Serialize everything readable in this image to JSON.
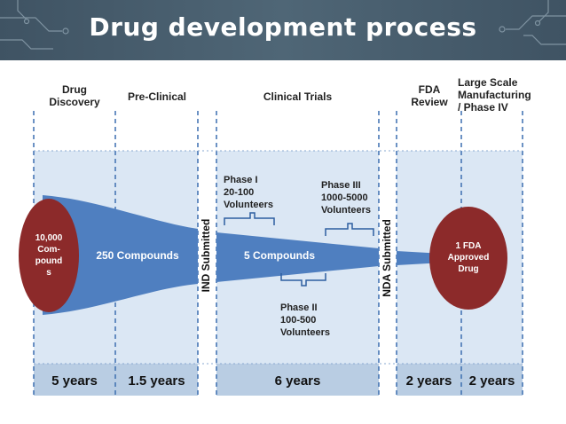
{
  "title": "Drug development process",
  "stages": [
    {
      "label": "Drug\nDiscovery"
    },
    {
      "label": "Pre-Clinical"
    },
    {
      "label": "Clinical Trials"
    },
    {
      "label": "FDA\nReview"
    },
    {
      "label": "Large Scale\nManufacturing\n/ Phase IV"
    }
  ],
  "milestones": {
    "ind": "IND Submitted",
    "nda": "NDA Submitted"
  },
  "funnel": {
    "start": "10,000\nCom-\npound\ns",
    "preclinical": "250 Compounds",
    "clinical": "5 Compounds",
    "end": "1 FDA\nApproved\nDrug"
  },
  "phases": {
    "phase1": "Phase I\n20-100\nVolunteers",
    "phase2": "Phase II\n100-500\nVolunteers",
    "phase3": "Phase III\n1000-5000\nVolunteers"
  },
  "durations": [
    "5 years",
    "1.5 years",
    "6 years",
    "2 years",
    "2 years"
  ],
  "colors": {
    "header": "#4a5e6e",
    "funnel": "#4f7fc0",
    "oval": "#8c2a2a",
    "panel": "#dbe7f4",
    "footer": "#b9cde3"
  }
}
